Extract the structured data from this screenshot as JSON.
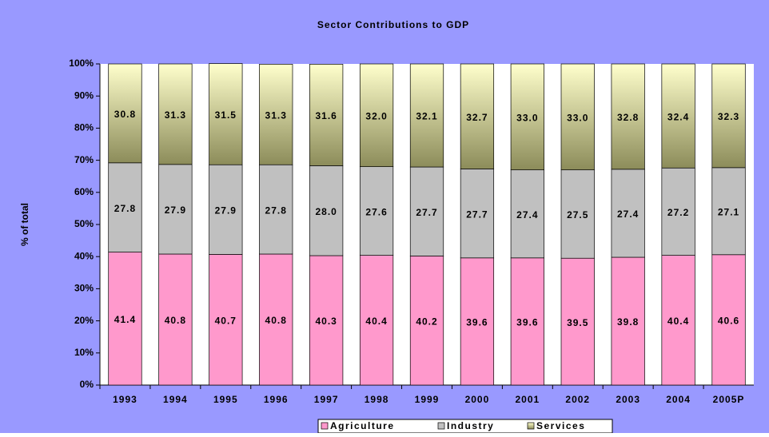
{
  "chart_data": {
    "type": "stacked_bar",
    "title": "Sector Contributions to GDP",
    "y_label": "% of total",
    "categories": [
      "1993",
      "1994",
      "1995",
      "1996",
      "1997",
      "1998",
      "1999",
      "2000",
      "2001",
      "2002",
      "2003",
      "2004",
      "2005P"
    ],
    "series": [
      {
        "name": "Agriculture",
        "color": "#ff99cc",
        "values": [
          41.4,
          40.8,
          40.7,
          40.8,
          40.3,
          40.4,
          40.2,
          39.6,
          39.6,
          39.5,
          39.8,
          40.4,
          40.6
        ],
        "value_labels": [
          "41.4",
          "40.8",
          "40.7",
          "40.8",
          "40.3",
          "40.4",
          "40.2",
          "39.6",
          "39.6",
          "39.5",
          "39.8",
          "40.4",
          "40.6"
        ]
      },
      {
        "name": "Industry",
        "color": "#c0c0c0",
        "values": [
          27.8,
          27.9,
          27.9,
          27.8,
          28.0,
          27.6,
          27.7,
          27.7,
          27.4,
          27.5,
          27.4,
          27.2,
          27.1
        ],
        "value_labels": [
          "27.8",
          "27.9",
          "27.9",
          "27.8",
          "28.0",
          "27.6",
          "27.7",
          "27.7",
          "27.4",
          "27.5",
          "27.4",
          "27.2",
          "27.1"
        ]
      },
      {
        "name": "Services",
        "color": "#8c8c5a",
        "values": [
          30.8,
          31.3,
          31.5,
          31.3,
          31.6,
          32.0,
          32.1,
          32.7,
          33.0,
          33.0,
          32.8,
          32.4,
          32.3
        ],
        "value_labels": [
          "30.8",
          "31.3",
          "31.5",
          "31.3",
          "31.6",
          "32.0",
          "32.1",
          "32.7",
          "33.0",
          "33.0",
          "32.8",
          "32.4",
          "32.3"
        ]
      }
    ],
    "ylim": [
      0,
      100
    ],
    "yticks": [
      {
        "value": 0,
        "label": "0%"
      },
      {
        "value": 10,
        "label": "10%"
      },
      {
        "value": 20,
        "label": "20%"
      },
      {
        "value": 30,
        "label": "30%"
      },
      {
        "value": 40,
        "label": "40%"
      },
      {
        "value": 50,
        "label": "50%"
      },
      {
        "value": 60,
        "label": "60%"
      },
      {
        "value": 70,
        "label": "70%"
      },
      {
        "value": 80,
        "label": "80%"
      },
      {
        "value": 90,
        "label": "90%"
      },
      {
        "value": 100,
        "label": "100%"
      }
    ],
    "legend": "bottom"
  }
}
